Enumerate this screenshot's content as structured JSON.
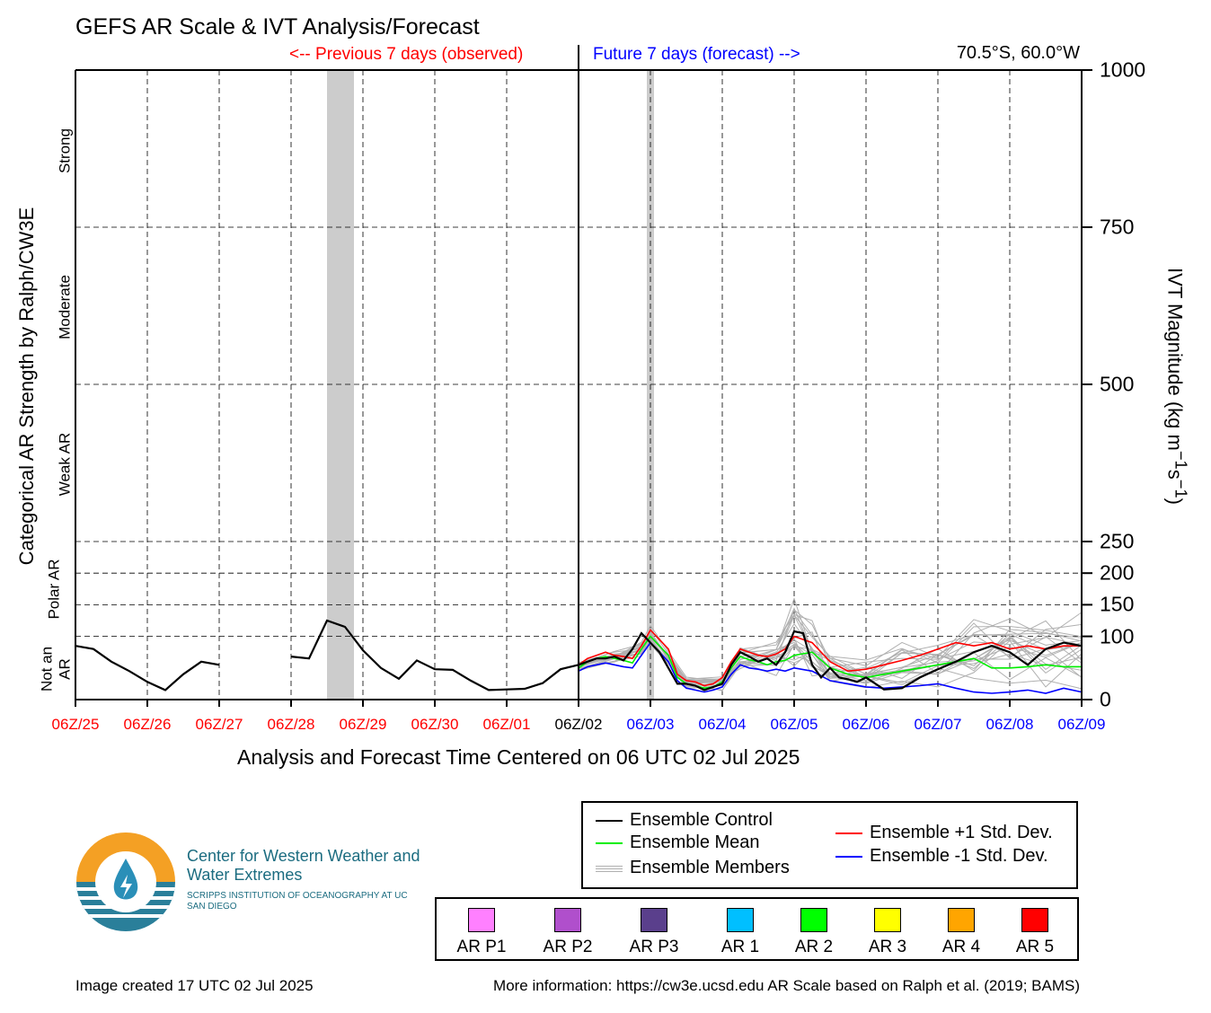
{
  "header": {
    "title": "GEFS AR Scale & IVT Analysis/Forecast",
    "previous_label": "<-- Previous 7 days (observed)",
    "future_label": "Future 7 days (forecast) -->",
    "location": "70.5°S, 60.0°W"
  },
  "categories": {
    "strong": "Strong",
    "moderate": "Moderate",
    "weak": "Weak AR",
    "polar": "Polar AR",
    "not_an": "Not an",
    "ar": "AR"
  },
  "legend": {
    "control": "Ensemble Control",
    "mean": "Ensemble Mean",
    "members": "Ensemble Members",
    "plus_std": "Ensemble +1 Std. Dev.",
    "minus_std": "Ensemble -1 Std. Dev."
  },
  "ar_scale": [
    {
      "label": "AR P1",
      "color": "#ff80ff"
    },
    {
      "label": "AR P2",
      "color": "#b04fcc"
    },
    {
      "label": "AR P3",
      "color": "#5a3f8c"
    },
    {
      "label": "AR 1",
      "color": "#00bfff"
    },
    {
      "label": "AR 2",
      "color": "#00ff00"
    },
    {
      "label": "AR 3",
      "color": "#ffff00"
    },
    {
      "label": "AR 4",
      "color": "#ffa500"
    },
    {
      "label": "AR 5",
      "color": "#ff0000"
    }
  ],
  "logo": {
    "line1": "Center for Western Weather and Water Extremes",
    "line2": "SCRIPPS INSTITUTION OF OCEANOGRAPHY AT UC SAN DIEGO"
  },
  "footer": {
    "created": "Image created 17 UTC 02 Jul 2025",
    "info": "More information: https://cw3e.ucsd.edu AR Scale based on Ralph et al. (2019; BAMS)"
  },
  "colors": {
    "past_tick": "#ff0000",
    "current_tick": "#000000",
    "future_tick": "#0000ff",
    "control": "#000000",
    "mean": "#00ee00",
    "members": "#b0b0b0",
    "plus_std": "#ff0000",
    "minus_std": "#0000ff",
    "ar_band": "#cccccc"
  },
  "chart_data": {
    "type": "line",
    "title": "GEFS AR Scale & IVT Analysis/Forecast",
    "xlabel": "Analysis and Forecast Time Centered on 06 UTC 02 Jul 2025",
    "ylabel_left": "Categorical AR Strength by Ralph/CW3E",
    "ylabel_right": "IVT Magnitude (kg m⁻¹s⁻¹)",
    "x_ticks": [
      "06Z/25",
      "06Z/26",
      "06Z/27",
      "06Z/28",
      "06Z/29",
      "06Z/30",
      "06Z/01",
      "06Z/02",
      "06Z/03",
      "06Z/04",
      "06Z/05",
      "06Z/06",
      "06Z/07",
      "06Z/08",
      "06Z/09"
    ],
    "xlim_days": [
      -7,
      7
    ],
    "y_ticks": [
      0,
      100,
      150,
      200,
      250,
      500,
      750,
      1000
    ],
    "ylim": [
      0,
      1000
    ],
    "grid": true,
    "ar_bands_days": [
      [
        -3.5,
        -3.125
      ],
      [
        1.0,
        1.0625
      ]
    ],
    "series": [
      {
        "name": "Ensemble Control",
        "x": [
          -7,
          -6.75,
          -6.5,
          -6.25,
          -6,
          -5.75,
          -5.5,
          -5.25,
          -5,
          null,
          -4.0,
          -3.75,
          -3.5,
          -3.25,
          -3.0,
          -2.75,
          -2.5,
          -2.25,
          -2.0,
          -1.75,
          -1.5,
          -1.25,
          -1.0,
          -0.75,
          -0.5,
          -0.25,
          0,
          0.125,
          0.25,
          0.375,
          0.5,
          0.625,
          0.75,
          0.875,
          1.0,
          1.125,
          1.25,
          1.375,
          1.5,
          1.625,
          1.75,
          1.875,
          2.0,
          2.125,
          2.25,
          2.375,
          2.5,
          2.625,
          2.75,
          2.875,
          3.0,
          3.125,
          3.25,
          3.375,
          3.5,
          3.625,
          3.75,
          3.875,
          4.0,
          4.25,
          4.5,
          4.75,
          5.0,
          5.25,
          5.5,
          5.75,
          6.0,
          6.25,
          6.5,
          6.75,
          7.0
        ],
        "values": [
          85,
          80,
          60,
          45,
          28,
          15,
          40,
          60,
          55,
          null,
          68,
          65,
          125,
          115,
          78,
          50,
          33,
          62,
          48,
          47,
          30,
          15,
          16,
          17,
          26,
          48,
          55,
          60,
          65,
          65,
          68,
          62,
          80,
          105,
          90,
          75,
          50,
          25,
          25,
          22,
          15,
          20,
          25,
          55,
          75,
          68,
          60,
          65,
          55,
          75,
          108,
          105,
          55,
          35,
          50,
          35,
          32,
          28,
          35,
          16,
          18,
          35,
          48,
          60,
          75,
          85,
          75,
          55,
          80,
          90,
          85
        ]
      },
      {
        "name": "Ensemble Mean",
        "x": [
          0,
          0.125,
          0.25,
          0.375,
          0.5,
          0.625,
          0.75,
          0.875,
          1.0,
          1.125,
          1.25,
          1.375,
          1.5,
          1.625,
          1.75,
          1.875,
          2.0,
          2.125,
          2.25,
          2.375,
          2.5,
          2.625,
          2.75,
          2.875,
          3.0,
          3.25,
          3.5,
          3.75,
          4.0,
          4.25,
          4.5,
          4.75,
          5.0,
          5.25,
          5.5,
          5.75,
          6.0,
          6.25,
          6.5,
          6.75,
          7.0
        ],
        "values": [
          50,
          60,
          65,
          68,
          65,
          62,
          58,
          80,
          100,
          85,
          70,
          35,
          25,
          22,
          18,
          20,
          28,
          50,
          68,
          63,
          60,
          55,
          60,
          62,
          70,
          75,
          50,
          40,
          35,
          40,
          45,
          50,
          55,
          60,
          65,
          50,
          50,
          52,
          55,
          52,
          52
        ]
      },
      {
        "name": "Ensemble +1 Std. Dev.",
        "x": [
          0,
          0.125,
          0.25,
          0.375,
          0.5,
          0.625,
          0.75,
          0.875,
          1.0,
          1.125,
          1.25,
          1.375,
          1.5,
          1.625,
          1.75,
          1.875,
          2.0,
          2.125,
          2.25,
          2.375,
          2.5,
          2.625,
          2.75,
          2.875,
          3.0,
          3.25,
          3.5,
          3.75,
          4.0,
          4.25,
          4.5,
          4.75,
          5.0,
          5.25,
          5.5,
          5.75,
          6.0,
          6.25,
          6.5,
          6.75,
          7.0
        ],
        "values": [
          55,
          65,
          70,
          75,
          70,
          68,
          65,
          85,
          110,
          95,
          80,
          40,
          30,
          28,
          22,
          25,
          35,
          60,
          80,
          75,
          70,
          68,
          72,
          80,
          100,
          90,
          60,
          45,
          48,
          55,
          62,
          70,
          80,
          90,
          85,
          90,
          80,
          85,
          80,
          85,
          85
        ]
      },
      {
        "name": "Ensemble -1 Std. Dev.",
        "x": [
          0,
          0.125,
          0.25,
          0.375,
          0.5,
          0.625,
          0.75,
          0.875,
          1.0,
          1.125,
          1.25,
          1.375,
          1.5,
          1.625,
          1.75,
          1.875,
          2.0,
          2.125,
          2.25,
          2.375,
          2.5,
          2.625,
          2.75,
          2.875,
          3.0,
          3.25,
          3.5,
          3.75,
          4.0,
          4.25,
          4.5,
          4.75,
          5.0,
          5.25,
          5.5,
          5.75,
          6.0,
          6.25,
          6.5,
          6.75,
          7.0
        ],
        "values": [
          45,
          52,
          55,
          58,
          55,
          52,
          50,
          70,
          90,
          75,
          60,
          30,
          18,
          15,
          12,
          15,
          20,
          40,
          55,
          50,
          48,
          45,
          48,
          45,
          50,
          45,
          30,
          25,
          20,
          18,
          20,
          22,
          25,
          18,
          12,
          10,
          12,
          15,
          10,
          18,
          12
        ]
      }
    ],
    "members_envelope": {
      "name": "Ensemble Members",
      "x": [
        0,
        0.5,
        0.875,
        1.0,
        1.5,
        2.0,
        2.25,
        2.75,
        3.0,
        3.25,
        3.5,
        4.0,
        4.5,
        5.0,
        5.5,
        6.0,
        6.5,
        7.0
      ],
      "upper": [
        60,
        80,
        95,
        120,
        40,
        45,
        90,
        110,
        175,
        140,
        80,
        70,
        100,
        110,
        150,
        170,
        150,
        150
      ],
      "lower": [
        45,
        55,
        65,
        85,
        15,
        10,
        40,
        30,
        35,
        20,
        15,
        10,
        12,
        10,
        8,
        8,
        8,
        8
      ]
    }
  }
}
